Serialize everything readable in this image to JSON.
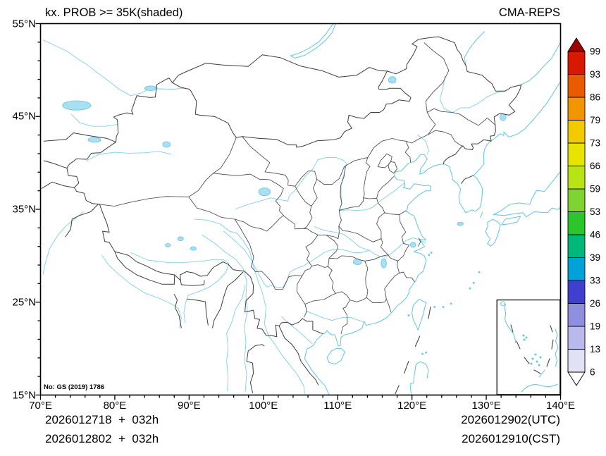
{
  "header": {
    "title": "kx. PROB >= 35K(shaded)",
    "model": "CMA-REPS"
  },
  "axes": {
    "x": {
      "labels": [
        "70°E",
        "80°E",
        "90°E",
        "100°E",
        "110°E",
        "120°E",
        "130°E",
        "140°E"
      ],
      "values": [
        70,
        80,
        90,
        100,
        110,
        120,
        130,
        140
      ],
      "range": [
        70,
        140
      ]
    },
    "y": {
      "labels": [
        "15°N",
        "25°N",
        "35°N",
        "45°N",
        "55°N"
      ],
      "values": [
        15,
        25,
        35,
        45,
        55
      ],
      "range": [
        15,
        55
      ]
    }
  },
  "colorbar": {
    "levels": [
      6,
      13,
      19,
      26,
      33,
      39,
      46,
      53,
      59,
      66,
      73,
      79,
      86,
      93,
      99
    ],
    "colors": [
      "#e2e2f7",
      "#b9b9ec",
      "#8f8fdf",
      "#4040d0",
      "#00a2d8",
      "#00b878",
      "#2cc62c",
      "#7ed432",
      "#b8e414",
      "#e8e400",
      "#f2ca00",
      "#f29600",
      "#ea5a00",
      "#d91800"
    ],
    "over_color": "#a00000",
    "under_color": "#ffffff"
  },
  "map_note": "No: GS (2019) 1786",
  "footer": {
    "init_line1": "2026012718  +  032h",
    "init_line2": "2026012802  +  032h",
    "valid_utc": "2026012902(UTC)",
    "valid_cst": "2026012910(CST)"
  },
  "chart_data": {
    "type": "map",
    "title": "kx. PROB >= 35K(shaded)",
    "model": "CMA-REPS",
    "lon_range": [
      70,
      140
    ],
    "lat_range": [
      15,
      55
    ],
    "prob_levels_percent": [
      6,
      13,
      19,
      26,
      33,
      39,
      46,
      53,
      59,
      66,
      73,
      79,
      86,
      93,
      99
    ],
    "shaded_regions": "none visible (field below lowest contour level of 6 everywhere)",
    "legend_position": "right",
    "grid": "off"
  }
}
